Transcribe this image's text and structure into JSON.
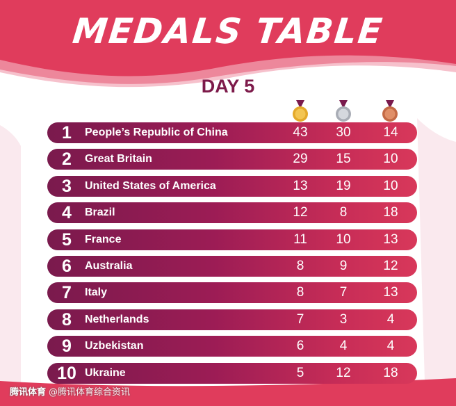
{
  "title": "MEDALS TABLE",
  "subtitle": "DAY 5",
  "colors": {
    "background_red": "#e03c5c",
    "row_dark": "#7a1a4d",
    "row_light": "#d8385a",
    "day_text": "#7d1a4a",
    "gold": "#e4a92a",
    "silver": "#b9bcc4",
    "bronze": "#d07a55"
  },
  "medal_icons": [
    "gold-medal-icon",
    "silver-medal-icon",
    "bronze-medal-icon"
  ],
  "rows": [
    {
      "rank": "1",
      "country": "People’s Republic of China",
      "gold": "43",
      "silver": "30",
      "bronze": "14"
    },
    {
      "rank": "2",
      "country": "Great Britain",
      "gold": "29",
      "silver": "15",
      "bronze": "10"
    },
    {
      "rank": "3",
      "country": "United States of America",
      "gold": "13",
      "silver": "19",
      "bronze": "10"
    },
    {
      "rank": "4",
      "country": "Brazil",
      "gold": "12",
      "silver": "8",
      "bronze": "18"
    },
    {
      "rank": "5",
      "country": "France",
      "gold": "11",
      "silver": "10",
      "bronze": "13"
    },
    {
      "rank": "6",
      "country": "Australia",
      "gold": "8",
      "silver": "9",
      "bronze": "12"
    },
    {
      "rank": "7",
      "country": "Italy",
      "gold": "8",
      "silver": "7",
      "bronze": "13"
    },
    {
      "rank": "8",
      "country": "Netherlands",
      "gold": "7",
      "silver": "3",
      "bronze": "4"
    },
    {
      "rank": "9",
      "country": "Uzbekistan",
      "gold": "6",
      "silver": "4",
      "bronze": "4"
    },
    {
      "rank": "10",
      "country": "Ukraine",
      "gold": "5",
      "silver": "12",
      "bronze": "18"
    }
  ],
  "watermark": {
    "brand": "腾讯体育",
    "handle": "@腾讯体育综合资讯"
  }
}
